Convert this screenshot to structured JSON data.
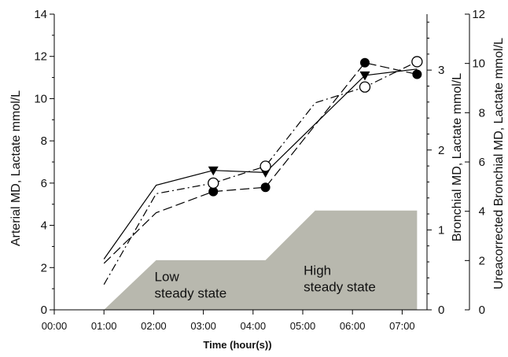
{
  "chart_data": {
    "type": "line",
    "xlabel": "Time (hour(s))",
    "ylabel_left": "Arterial MD, Lactate mmol/L",
    "ylabel_right1": "Bronchial MD, Lactate mmol/L",
    "ylabel_right2": "Ureacorrected Bronchial MD, Lactate mmol/L",
    "x_ticks": [
      "00:00",
      "01:00",
      "02:00",
      "03:00",
      "04:00",
      "05:00",
      "06:00",
      "07:00"
    ],
    "xlim": [
      0,
      7.5
    ],
    "y_left": {
      "lim": [
        0,
        14
      ],
      "ticks": [
        "0",
        "2",
        "4",
        "6",
        "8",
        "10",
        "12",
        "14"
      ]
    },
    "y_right1": {
      "lim": [
        0,
        3.7
      ],
      "ticks": [
        "0",
        "1",
        "2",
        "3"
      ]
    },
    "y_right2": {
      "lim": [
        0,
        12
      ],
      "ticks": [
        "0",
        "2",
        "4",
        "6",
        "8",
        "10",
        "12"
      ]
    },
    "series": [
      {
        "line_style": "solid",
        "marker": "triangle-down",
        "x": [
          1.0,
          2.05,
          3.2,
          4.25,
          6.25,
          7.3
        ],
        "y": [
          2.4,
          5.9,
          6.6,
          6.5,
          11.1,
          11.4
        ],
        "marker_x": [
          3.2,
          4.25,
          6.25
        ]
      },
      {
        "line_style": "dashed",
        "marker": "filled-circle",
        "x": [
          1.0,
          2.05,
          3.2,
          4.25,
          6.25,
          7.3
        ],
        "y": [
          2.2,
          4.6,
          5.6,
          5.8,
          11.7,
          11.15
        ],
        "marker_x": [
          3.2,
          4.25,
          6.25,
          7.3
        ]
      },
      {
        "line_style": "dash-dot",
        "marker": "open-circle",
        "x": [
          1.0,
          2.05,
          3.2,
          4.25,
          5.25,
          6.25,
          7.3
        ],
        "y": [
          1.2,
          5.5,
          6.0,
          6.8,
          9.8,
          10.55,
          11.75
        ],
        "marker_x": [
          3.2,
          4.25,
          6.25,
          7.3
        ]
      }
    ],
    "infusion_region": {
      "color": "#b8b8ae",
      "x": [
        1.0,
        2.05,
        4.25,
        5.25,
        7.3
      ],
      "level_left_axis": [
        0,
        2.35,
        2.35,
        4.7,
        4.7
      ],
      "labels": [
        {
          "text_line1": "Low",
          "text_line2": "steady state",
          "anchor_x": 2.05,
          "anchor_y": 1.7
        },
        {
          "text_line1": "High",
          "text_line2": "steady state",
          "anchor_x": 5.05,
          "anchor_y": 2.0
        }
      ]
    }
  }
}
